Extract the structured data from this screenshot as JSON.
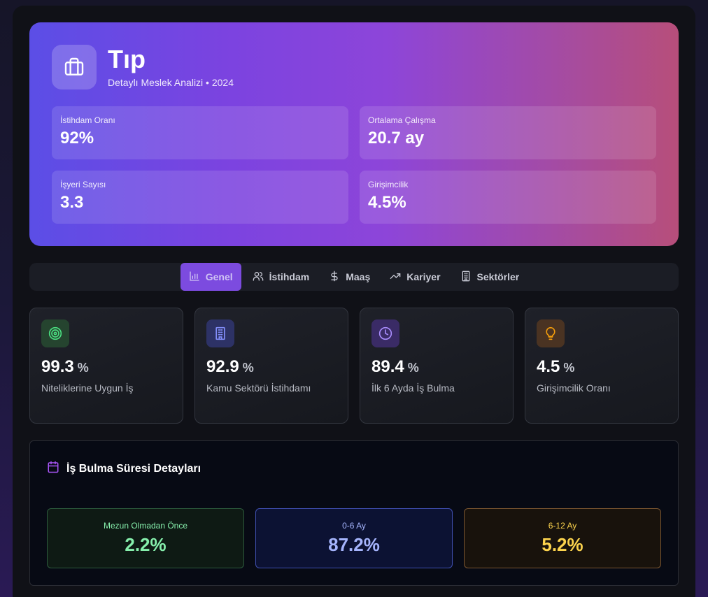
{
  "hero": {
    "icon": "briefcase-icon",
    "title": "Tıp",
    "subtitle": "Detaylı Meslek Analizi • 2024",
    "stats": [
      {
        "label": "İstihdam Oranı",
        "value": "92%"
      },
      {
        "label": "Ortalama Çalışma",
        "value": "20.7 ay"
      },
      {
        "label": "İşyeri Sayısı",
        "value": "3.3"
      },
      {
        "label": "Girişimcilik",
        "value": "4.5%"
      }
    ]
  },
  "tabs": [
    {
      "label": "Genel",
      "icon": "bar-chart-icon",
      "active": true
    },
    {
      "label": "İstihdam",
      "icon": "users-icon",
      "active": false
    },
    {
      "label": "Maaş",
      "icon": "dollar-icon",
      "active": false
    },
    {
      "label": "Kariyer",
      "icon": "trending-up-icon",
      "active": false
    },
    {
      "label": "Sektörler",
      "icon": "building-icon",
      "active": false
    }
  ],
  "kpis": [
    {
      "value": "99.3",
      "unit": "%",
      "label": "Niteliklerine Uygun İş",
      "icon": "target-icon",
      "color": "#4ade80"
    },
    {
      "value": "92.9",
      "unit": "%",
      "label": "Kamu Sektörü İstihdamı",
      "icon": "building-icon",
      "color": "#818cf8"
    },
    {
      "value": "89.4",
      "unit": "%",
      "label": "İlk 6 Ayda İş Bulma",
      "icon": "clock-icon",
      "color": "#a78bfa"
    },
    {
      "value": "4.5",
      "unit": "%",
      "label": "Girişimcilik Oranı",
      "icon": "lightbulb-icon",
      "color": "#f59e0b"
    }
  ],
  "detail": {
    "title": "İş Bulma Süresi Detayları",
    "icon": "calendar-icon",
    "boxes": [
      {
        "label": "Mezun Olmadan Önce",
        "value": "2.2%",
        "color": "#86efac"
      },
      {
        "label": "0-6 Ay",
        "value": "87.2%",
        "color": "#a5b4fc"
      },
      {
        "label": "6-12 Ay",
        "value": "5.2%",
        "color": "#fcd34d"
      }
    ]
  }
}
